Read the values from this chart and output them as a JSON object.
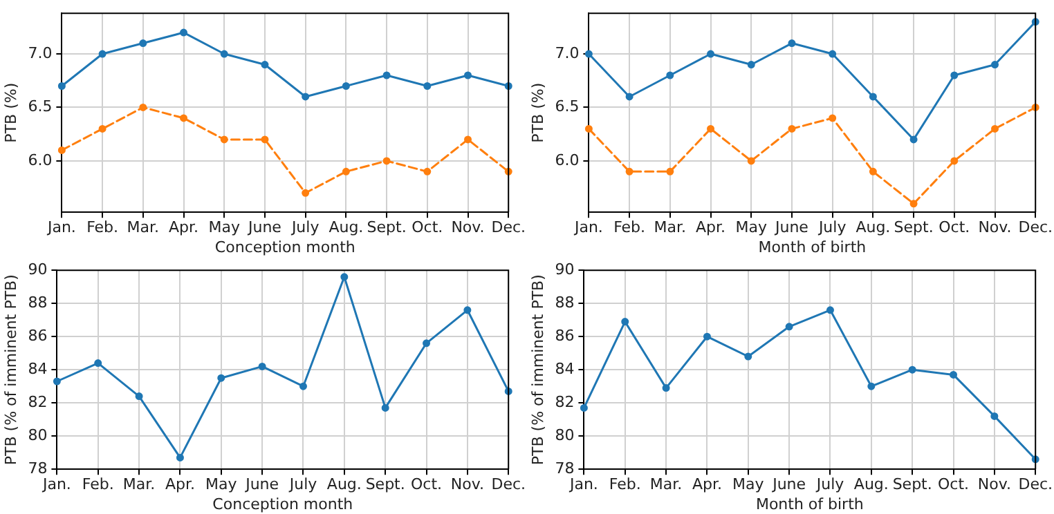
{
  "chart_data": [
    {
      "type": "line",
      "xlabel": "Conception month",
      "ylabel": "PTB (%)",
      "categories": [
        "Jan.",
        "Feb.",
        "Mar.",
        "Apr.",
        "May",
        "June",
        "July",
        "Aug.",
        "Sept.",
        "Oct.",
        "Nov.",
        "Dec."
      ],
      "series": [
        {
          "color": "#1f77b4",
          "line_style": "solid",
          "values": [
            6.7,
            7.0,
            7.1,
            7.2,
            7.0,
            6.9,
            6.6,
            6.7,
            6.8,
            6.7,
            6.8,
            6.7
          ]
        },
        {
          "color": "#ff7f0e",
          "line_style": "dashed",
          "values": [
            6.1,
            6.3,
            6.5,
            6.4,
            6.2,
            6.2,
            5.7,
            5.9,
            6.0,
            5.9,
            6.2,
            5.9
          ]
        }
      ],
      "ylim": [
        5.52,
        7.38
      ],
      "yticks": [
        {
          "value": 6.0,
          "label": "6.0"
        },
        {
          "value": 6.5,
          "label": "6.5"
        },
        {
          "value": 7.0,
          "label": "7.0"
        }
      ],
      "grid": true,
      "marker": "circle"
    },
    {
      "type": "line",
      "xlabel": "Month of birth",
      "ylabel": "PTB (%)",
      "categories": [
        "Jan.",
        "Feb.",
        "Mar.",
        "Apr.",
        "May",
        "June",
        "July",
        "Aug.",
        "Sept.",
        "Oct.",
        "Nov.",
        "Dec."
      ],
      "series": [
        {
          "color": "#1f77b4",
          "line_style": "solid",
          "values": [
            7.0,
            6.6,
            6.8,
            7.0,
            6.9,
            7.1,
            7.0,
            6.6,
            6.2,
            6.8,
            6.9,
            7.3
          ]
        },
        {
          "color": "#ff7f0e",
          "line_style": "dashed",
          "values": [
            6.3,
            5.9,
            5.9,
            6.3,
            6.0,
            6.3,
            6.4,
            5.9,
            5.6,
            6.0,
            6.3,
            6.5
          ]
        }
      ],
      "ylim": [
        5.52,
        7.38
      ],
      "yticks": [
        {
          "value": 6.0,
          "label": "6.0"
        },
        {
          "value": 6.5,
          "label": "6.5"
        },
        {
          "value": 7.0,
          "label": "7.0"
        }
      ],
      "grid": true,
      "marker": "circle"
    },
    {
      "type": "line",
      "xlabel": "Conception month",
      "ylabel": "PTB (% of imminent PTB)",
      "categories": [
        "Jan.",
        "Feb.",
        "Mar.",
        "Apr.",
        "May",
        "June",
        "July",
        "Aug.",
        "Sept.",
        "Oct.",
        "Nov.",
        "Dec."
      ],
      "series": [
        {
          "color": "#1f77b4",
          "line_style": "solid",
          "values": [
            83.3,
            84.4,
            82.4,
            78.7,
            83.5,
            84.2,
            83.0,
            89.6,
            81.7,
            85.6,
            87.6,
            82.7
          ]
        }
      ],
      "ylim": [
        78,
        90
      ],
      "yticks": [
        78,
        80,
        82,
        84,
        86,
        88,
        90
      ],
      "grid": true,
      "marker": "circle"
    },
    {
      "type": "line",
      "xlabel": "Month of birth",
      "ylabel": "PTB (% of imminent PTB)",
      "categories": [
        "Jan.",
        "Feb.",
        "Mar.",
        "Apr.",
        "May",
        "June",
        "July",
        "Aug.",
        "Sept.",
        "Oct.",
        "Nov.",
        "Dec."
      ],
      "series": [
        {
          "color": "#1f77b4",
          "line_style": "solid",
          "values": [
            81.7,
            86.9,
            82.9,
            86.0,
            84.8,
            86.6,
            87.6,
            83.0,
            84.0,
            83.7,
            81.2,
            78.6
          ]
        }
      ],
      "ylim": [
        78,
        90
      ],
      "yticks": [
        78,
        80,
        82,
        84,
        86,
        88,
        90
      ],
      "grid": true,
      "marker": "circle"
    }
  ]
}
